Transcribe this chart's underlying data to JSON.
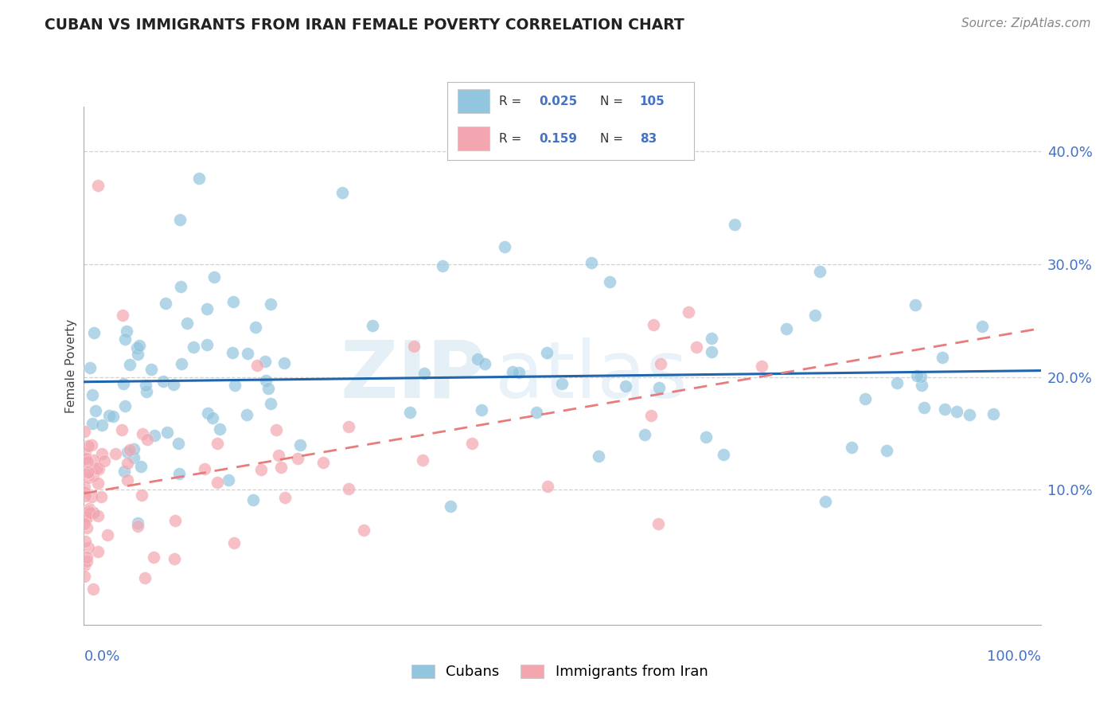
{
  "title": "CUBAN VS IMMIGRANTS FROM IRAN FEMALE POVERTY CORRELATION CHART",
  "source": "Source: ZipAtlas.com",
  "ylabel": "Female Poverty",
  "r_cuban": 0.025,
  "n_cuban": 105,
  "r_iran": 0.159,
  "n_iran": 83,
  "cuban_color": "#92c5de",
  "iran_color": "#f4a6b0",
  "cuban_line_color": "#2166ac",
  "iran_line_color": "#e87b7b",
  "ytick_labels": [
    "10.0%",
    "20.0%",
    "30.0%",
    "40.0%"
  ],
  "ytick_values": [
    0.1,
    0.2,
    0.3,
    0.4
  ],
  "xlim": [
    0.0,
    1.0
  ],
  "ylim": [
    -0.02,
    0.44
  ],
  "background_color": "#ffffff",
  "grid_color": "#cccccc",
  "legend_box_color": "#dddddd",
  "watermark_color": "#d0e4f0"
}
